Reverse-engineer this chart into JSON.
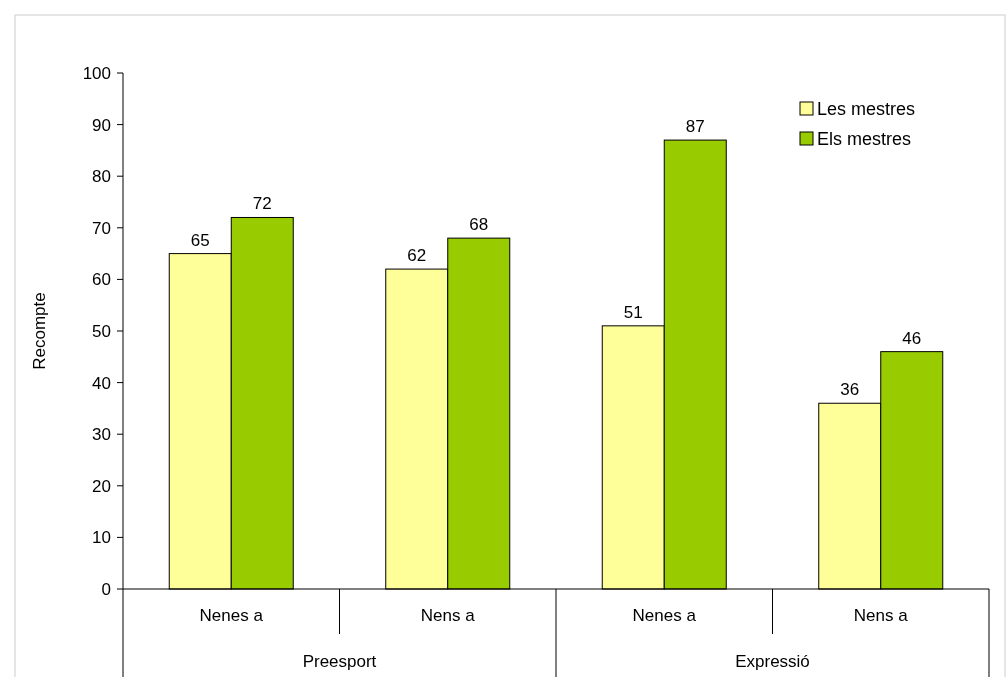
{
  "chart_data": {
    "type": "bar",
    "ylabel": "Recompte",
    "categories": [
      "Nenes a",
      "Nens a",
      "Nenes a",
      "Nens a"
    ],
    "series": [
      {
        "name": "Les mestres",
        "color": "#ffff99",
        "values": [
          65,
          62,
          51,
          36
        ]
      },
      {
        "name": "Els mestres",
        "color": "#99cc00",
        "values": [
          72,
          68,
          87,
          46
        ]
      }
    ],
    "ylim": [
      0,
      100
    ],
    "yticks": [
      0,
      10,
      20,
      30,
      40,
      50,
      60,
      70,
      80,
      90,
      100
    ],
    "data_labels": true,
    "legend": "top right",
    "grid": false,
    "annotations": [
      "Preesport",
      "Expressió"
    ]
  }
}
